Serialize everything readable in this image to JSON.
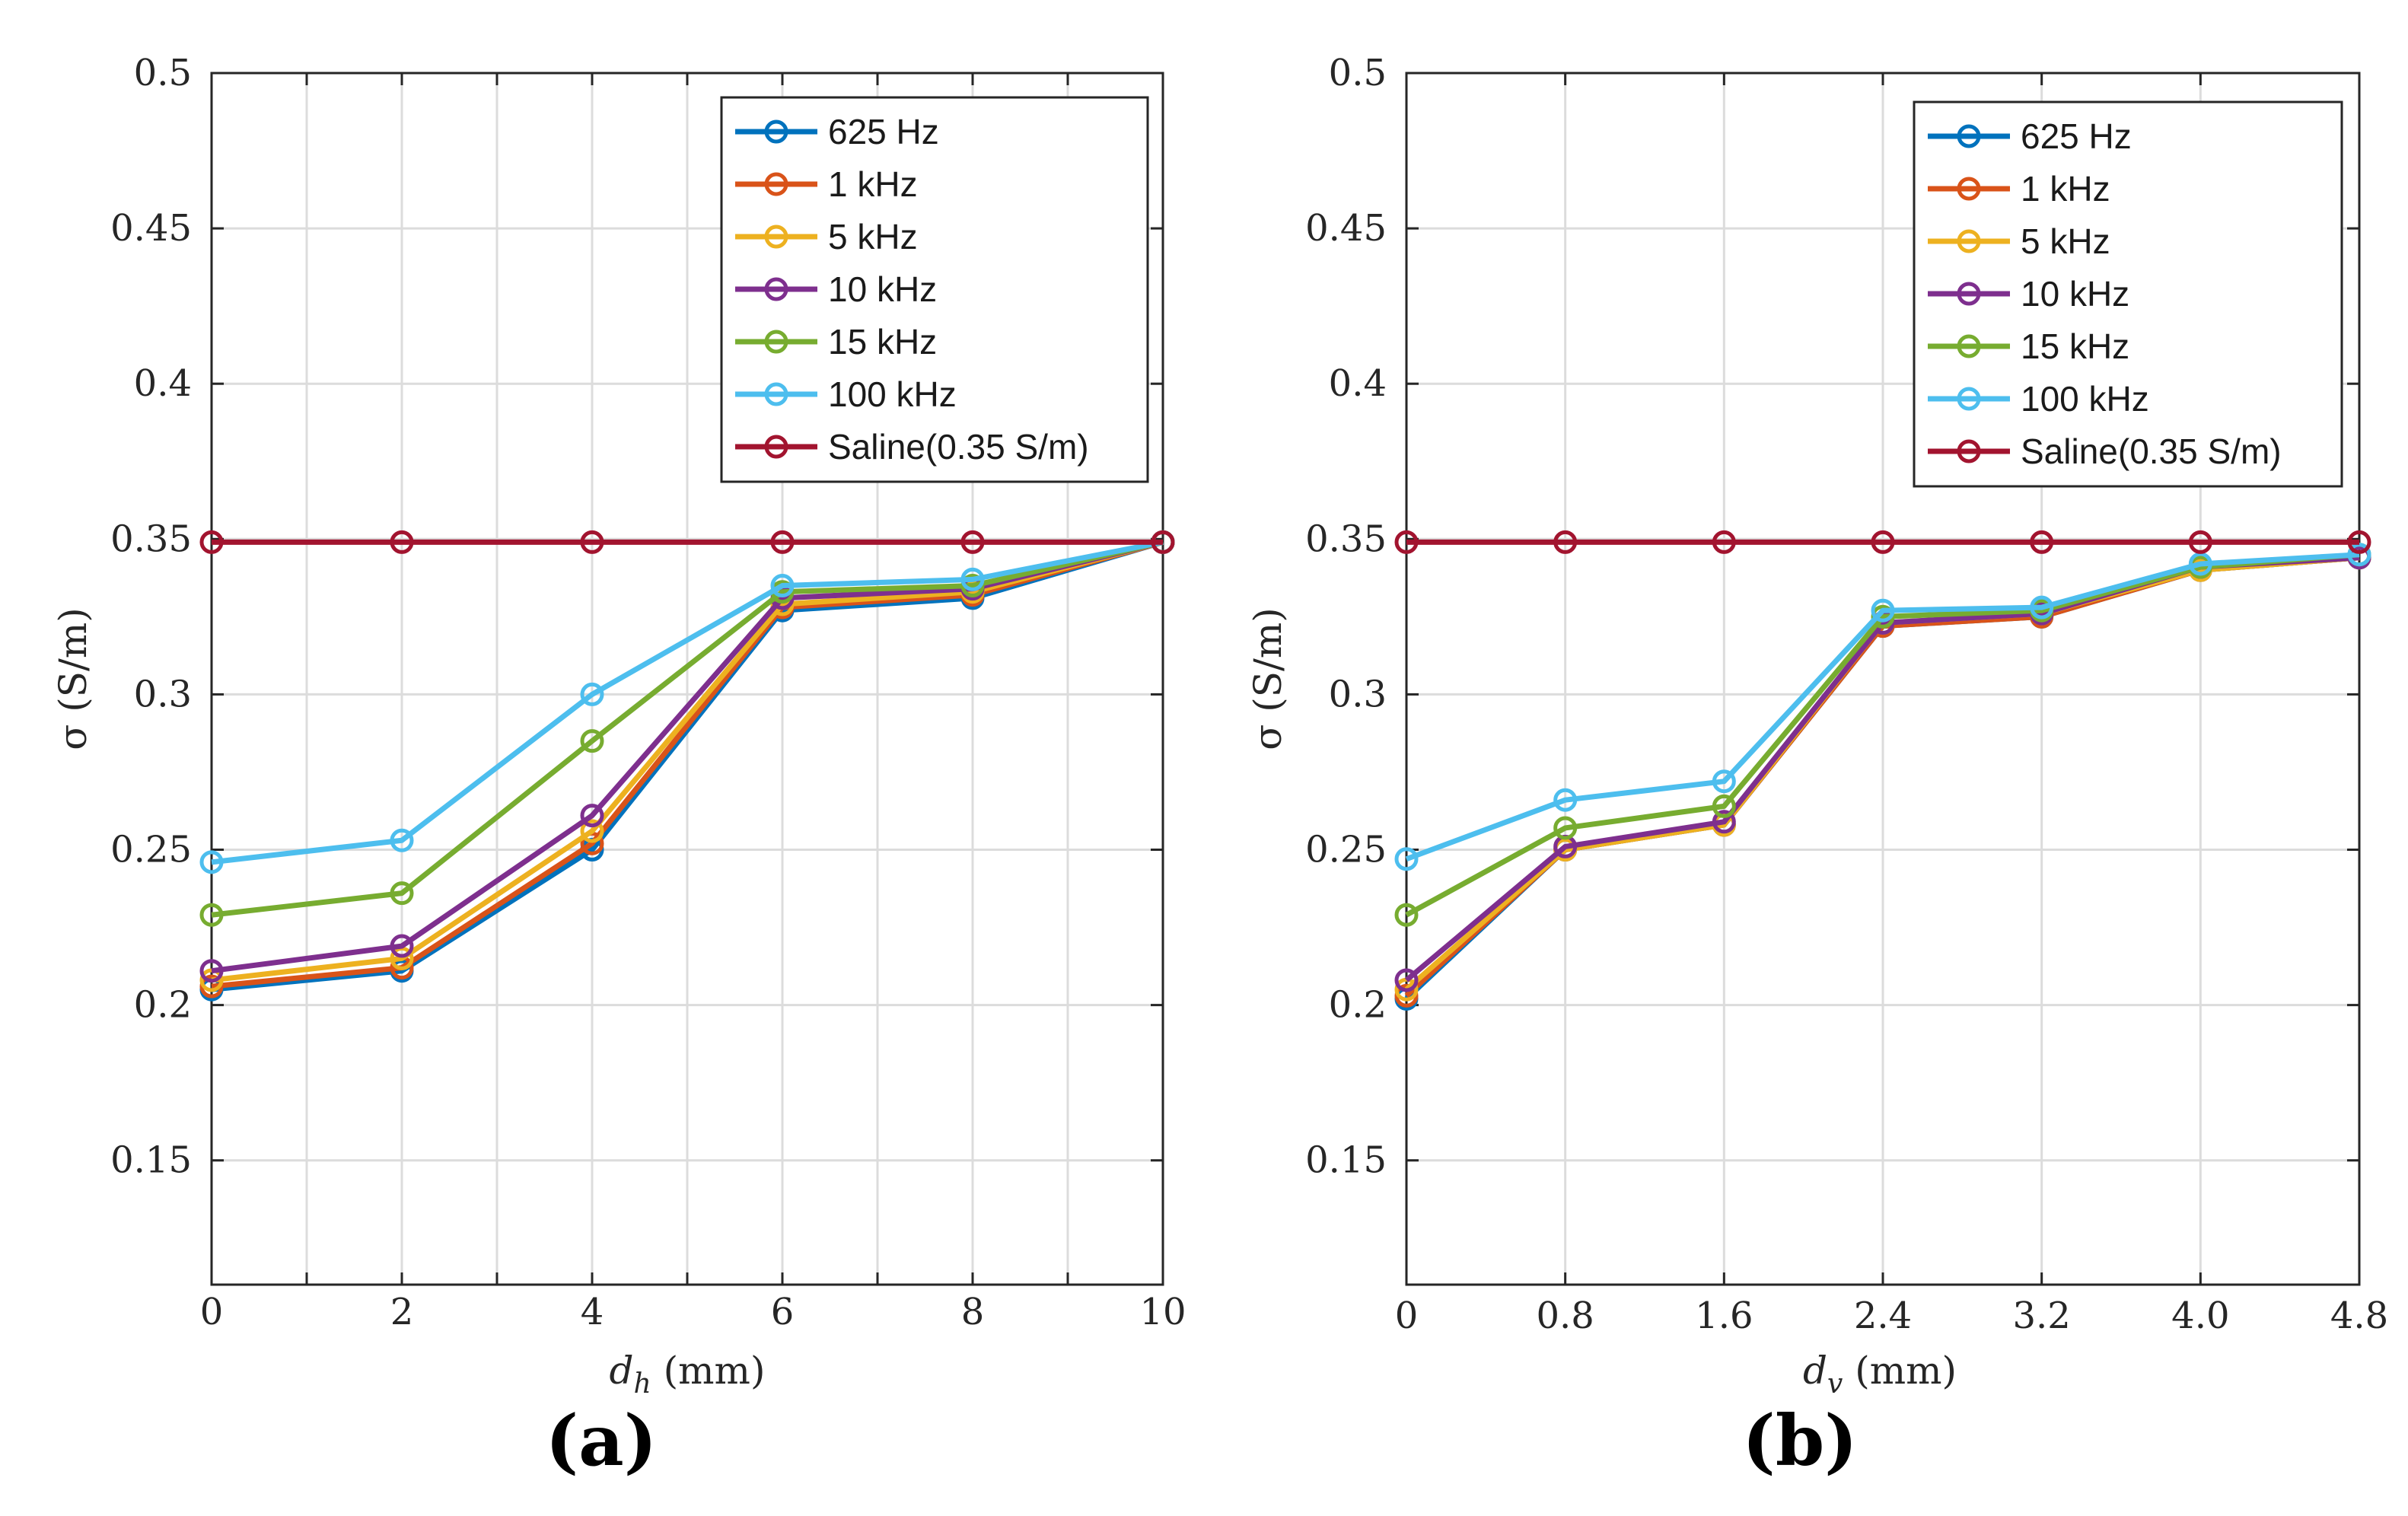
{
  "chart_data": [
    {
      "type": "line",
      "panel_label": "(a)",
      "xlabel_main": "d",
      "xlabel_sub": "h",
      "xlabel_unit": " (mm)",
      "ylabel": "σ (S/m)",
      "x": [
        0,
        2,
        4,
        6,
        8,
        10
      ],
      "x_ticks": [
        "0",
        "2",
        "4",
        "6",
        "8",
        "10"
      ],
      "xlim": [
        0,
        10
      ],
      "ylim": [
        0.11,
        0.5
      ],
      "y_ticks": [
        "0.15",
        "0.2",
        "0.25",
        "0.3",
        "0.35",
        "0.4",
        "0.45",
        "0.5"
      ],
      "grid": true,
      "legend_position": "top-right",
      "series": [
        {
          "name": "625 Hz",
          "color": "#0072BD",
          "values": [
            0.205,
            0.211,
            0.25,
            0.327,
            0.331,
            0.349
          ]
        },
        {
          "name": "1 kHz",
          "color": "#D95319",
          "values": [
            0.206,
            0.212,
            0.252,
            0.328,
            0.332,
            0.349
          ]
        },
        {
          "name": "5 kHz",
          "color": "#EDB120",
          "values": [
            0.208,
            0.215,
            0.256,
            0.329,
            0.333,
            0.349
          ]
        },
        {
          "name": "10 kHz",
          "color": "#7E2F8E",
          "values": [
            0.211,
            0.219,
            0.261,
            0.331,
            0.334,
            0.349
          ]
        },
        {
          "name": "15 kHz",
          "color": "#77AC30",
          "values": [
            0.229,
            0.236,
            0.285,
            0.333,
            0.335,
            0.349
          ]
        },
        {
          "name": "100 kHz",
          "color": "#4DBEEE",
          "values": [
            0.246,
            0.253,
            0.3,
            0.335,
            0.337,
            0.349
          ]
        },
        {
          "name": "Saline(0.35 S/m)",
          "color": "#A2142F",
          "values": [
            0.349,
            0.349,
            0.349,
            0.349,
            0.349,
            0.349
          ]
        }
      ]
    },
    {
      "type": "line",
      "panel_label": "(b)",
      "xlabel_main": "d",
      "xlabel_sub": "v",
      "xlabel_unit": " (mm)",
      "ylabel": "σ (S/m)",
      "x": [
        0,
        0.8,
        1.6,
        2.4,
        3.2,
        4.0,
        4.8
      ],
      "x_ticks": [
        "0",
        "0.8",
        "1.6",
        "2.4",
        "3.2",
        "4.0",
        "4.8"
      ],
      "xlim": [
        0,
        4.8
      ],
      "ylim": [
        0.11,
        0.5
      ],
      "y_ticks": [
        "0.15",
        "0.2",
        "0.25",
        "0.3",
        "0.35",
        "0.4",
        "0.45",
        "0.5"
      ],
      "grid": true,
      "legend_position": "top-right",
      "series": [
        {
          "name": "625 Hz",
          "color": "#0072BD",
          "values": [
            0.202,
            0.25,
            0.258,
            0.322,
            0.325,
            0.34,
            0.344
          ]
        },
        {
          "name": "1 kHz",
          "color": "#D95319",
          "values": [
            0.203,
            0.25,
            0.258,
            0.322,
            0.325,
            0.34,
            0.344
          ]
        },
        {
          "name": "5 kHz",
          "color": "#EDB120",
          "values": [
            0.205,
            0.25,
            0.258,
            0.323,
            0.326,
            0.34,
            0.344
          ]
        },
        {
          "name": "10 kHz",
          "color": "#7E2F8E",
          "values": [
            0.208,
            0.251,
            0.259,
            0.323,
            0.326,
            0.341,
            0.344
          ]
        },
        {
          "name": "15 kHz",
          "color": "#77AC30",
          "values": [
            0.229,
            0.257,
            0.264,
            0.325,
            0.327,
            0.341,
            0.345
          ]
        },
        {
          "name": "100 kHz",
          "color": "#4DBEEE",
          "values": [
            0.247,
            0.266,
            0.272,
            0.327,
            0.328,
            0.342,
            0.345
          ]
        },
        {
          "name": "Saline(0.35 S/m)",
          "color": "#A2142F",
          "values": [
            0.349,
            0.349,
            0.349,
            0.349,
            0.349,
            0.349,
            0.349
          ]
        }
      ]
    }
  ]
}
